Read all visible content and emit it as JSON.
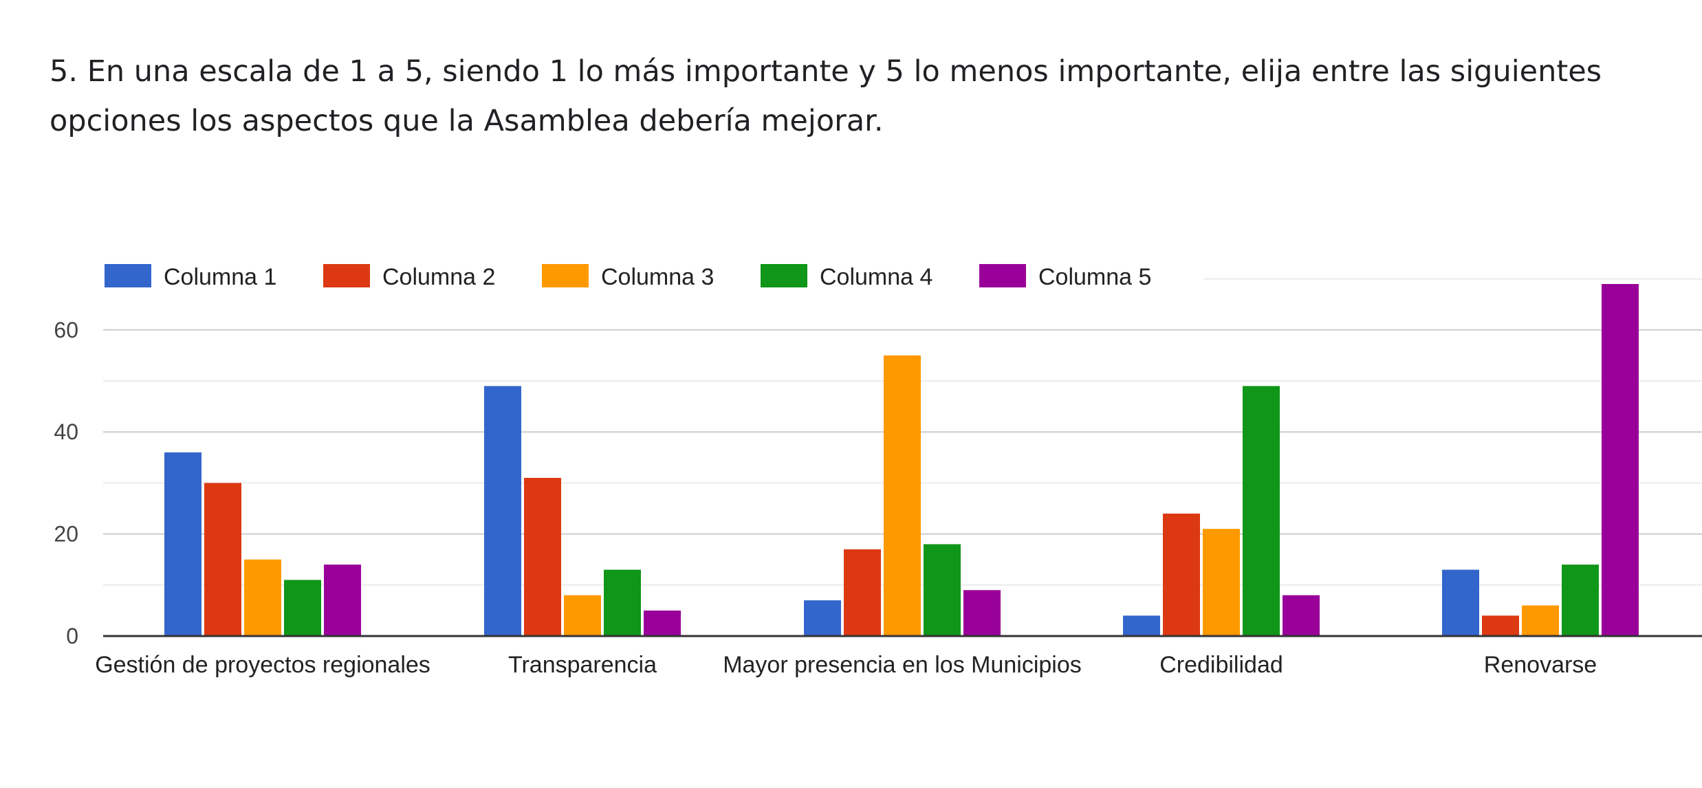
{
  "question": {
    "title": "5.  En una escala de 1 a 5, siendo 1 lo más importante y 5 lo menos importante, elija entre las siguientes opciones los aspectos que la Asamblea debería mejorar."
  },
  "chart_data": {
    "type": "bar",
    "title": "",
    "xlabel": "",
    "ylabel": "",
    "categories": [
      "Gestión de proyectos regionales",
      "Transparencia",
      "Mayor presencia en los Municipios",
      "Credibilidad",
      "Renovarse"
    ],
    "series": [
      {
        "name": "Columna 1",
        "color": "#3366cc",
        "values": [
          36,
          49,
          7,
          4,
          13
        ]
      },
      {
        "name": "Columna 2",
        "color": "#dc3912",
        "values": [
          30,
          31,
          17,
          24,
          4
        ]
      },
      {
        "name": "Columna 3",
        "color": "#ff9900",
        "values": [
          15,
          8,
          55,
          21,
          6
        ]
      },
      {
        "name": "Columna 4",
        "color": "#109618",
        "values": [
          11,
          13,
          18,
          49,
          14
        ]
      },
      {
        "name": "Columna 5",
        "color": "#990099",
        "values": [
          14,
          5,
          9,
          8,
          69
        ]
      }
    ],
    "ylim": [
      0,
      70
    ],
    "yticks": [
      0,
      20,
      40,
      60
    ],
    "grid": true,
    "legend": "top-left"
  }
}
